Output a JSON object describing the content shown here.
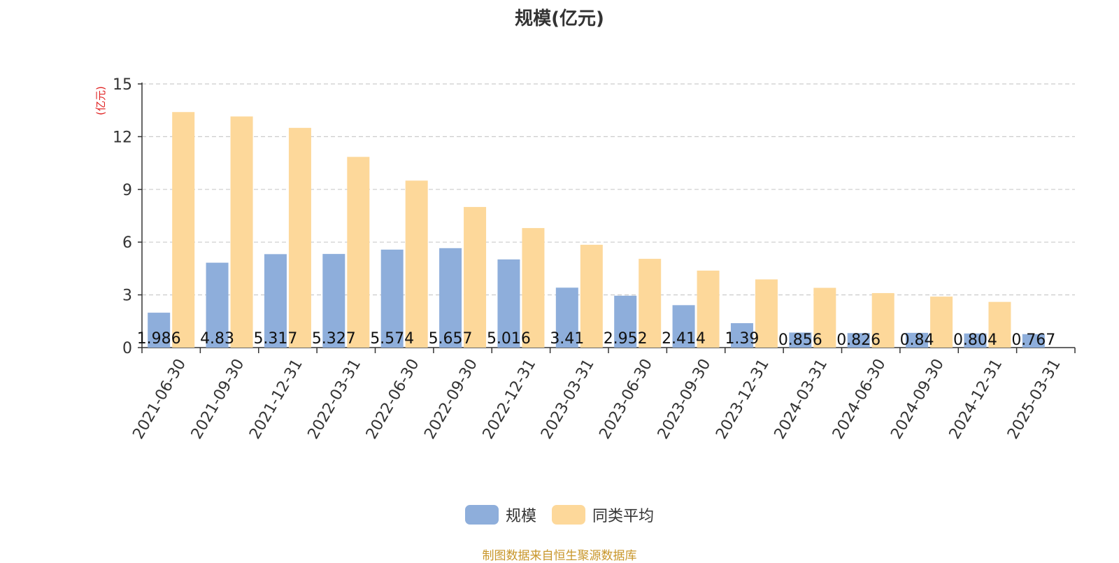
{
  "chart_data": {
    "type": "bar",
    "title": "规模(亿元)",
    "ylabel": "(亿元)",
    "xlabel": "",
    "ylim": [
      0,
      15
    ],
    "yticks": [
      0,
      3,
      6,
      9,
      12,
      15
    ],
    "grid": true,
    "legend_position": "bottom",
    "categories": [
      "2021-06-30",
      "2021-09-30",
      "2021-12-31",
      "2022-03-31",
      "2022-06-30",
      "2022-09-30",
      "2022-12-31",
      "2023-03-31",
      "2023-06-30",
      "2023-09-30",
      "2023-12-31",
      "2024-03-31",
      "2024-06-30",
      "2024-09-30",
      "2024-12-31",
      "2025-03-31"
    ],
    "series": [
      {
        "name": "规模",
        "color": "#8eaedb",
        "values": [
          1.986,
          4.83,
          5.317,
          5.327,
          5.574,
          5.657,
          5.016,
          3.41,
          2.952,
          2.414,
          1.39,
          0.856,
          0.826,
          0.84,
          0.804,
          0.767
        ],
        "labels": [
          "1.986",
          "4.83",
          "5.317",
          "5.327",
          "5.574",
          "5.657",
          "5.016",
          "3.41",
          "2.952",
          "2.414",
          "1.39",
          "0.856",
          "0.826",
          "0.84",
          "0.804",
          "0.767"
        ]
      },
      {
        "name": "同类平均",
        "color": "#fdd89a",
        "values": [
          13.4,
          13.15,
          12.5,
          10.85,
          9.5,
          8.0,
          6.8,
          5.85,
          5.05,
          4.38,
          3.88,
          3.4,
          3.1,
          2.9,
          2.6,
          null
        ]
      }
    ]
  },
  "source": "制图数据来自恒生聚源数据库"
}
